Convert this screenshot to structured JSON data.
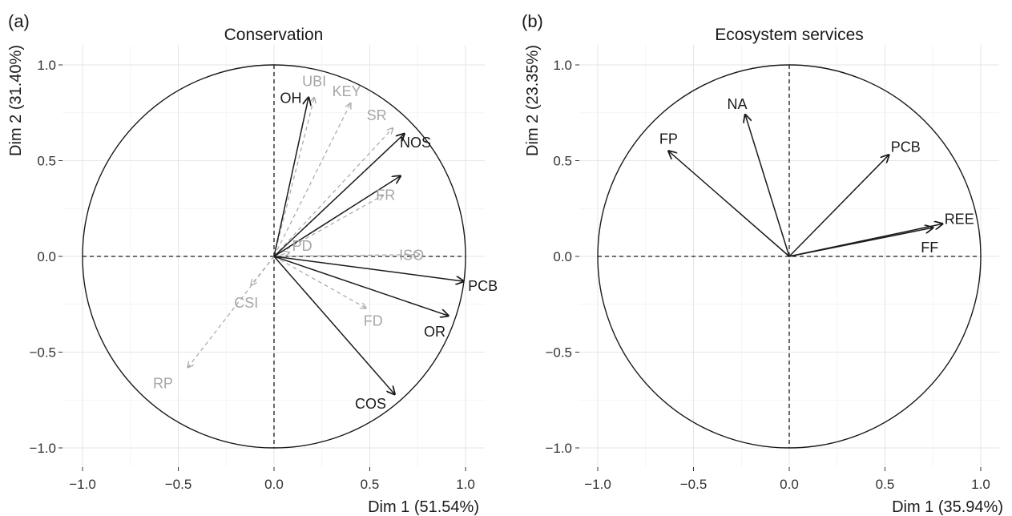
{
  "chart_data": [
    {
      "type": "scatter",
      "panel_label": "(a)",
      "title": "Conservation",
      "xlabel": "Dim 1 (51.54%)",
      "ylabel": "Dim 2 (31.40%)",
      "xlim": [
        -1.1,
        1.1
      ],
      "ylim": [
        -1.1,
        1.1
      ],
      "xticks": [
        "−1.0",
        "−0.5",
        "0.0",
        "0.5",
        "1.0"
      ],
      "yticks": [
        "−1.0",
        "−0.5",
        "0.0",
        "0.5",
        "1.0"
      ],
      "grid": true,
      "unit_circle": true,
      "vectors": [
        {
          "label": "OH",
          "x": 0.18,
          "y": 0.83,
          "style": "solid",
          "color": "#1a1a1a"
        },
        {
          "label": "NOS",
          "x": 0.68,
          "y": 0.64,
          "style": "solid",
          "color": "#1a1a1a"
        },
        {
          "label": "",
          "x": 0.66,
          "y": 0.42,
          "style": "solid",
          "color": "#1a1a1a"
        },
        {
          "label": "PCB",
          "x": 0.99,
          "y": -0.13,
          "style": "solid",
          "color": "#1a1a1a"
        },
        {
          "label": "OR",
          "x": 0.91,
          "y": -0.31,
          "style": "solid",
          "color": "#1a1a1a"
        },
        {
          "label": "COS",
          "x": 0.63,
          "y": -0.72,
          "style": "solid",
          "color": "#1a1a1a"
        },
        {
          "label": "UBI",
          "x": 0.21,
          "y": 0.83,
          "style": "dashed",
          "color": "#a6a6a6"
        },
        {
          "label": "KEY",
          "x": 0.4,
          "y": 0.8,
          "style": "dashed",
          "color": "#a6a6a6"
        },
        {
          "label": "SR",
          "x": 0.62,
          "y": 0.67,
          "style": "dashed",
          "color": "#a6a6a6"
        },
        {
          "label": "FR",
          "x": 0.57,
          "y": 0.32,
          "style": "dashed",
          "color": "#a6a6a6"
        },
        {
          "label": "PD",
          "x": 0.08,
          "y": 0.02,
          "style": "dashed",
          "color": "#a6a6a6"
        },
        {
          "label": "ISO",
          "x": 0.76,
          "y": 0.01,
          "style": "dashed",
          "color": "#a6a6a6"
        },
        {
          "label": "FD",
          "x": 0.48,
          "y": -0.27,
          "style": "dashed",
          "color": "#a6a6a6"
        },
        {
          "label": "CSI",
          "x": -0.12,
          "y": -0.15,
          "style": "dashed",
          "color": "#a6a6a6"
        },
        {
          "label": "RP",
          "x": -0.45,
          "y": -0.58,
          "style": "dashed",
          "color": "#a6a6a6"
        }
      ]
    },
    {
      "type": "scatter",
      "panel_label": "(b)",
      "title": "Ecosystem services",
      "xlabel": "Dim 1 (35.94%)",
      "ylabel": "Dim 2 (23.35%)",
      "xlim": [
        -1.1,
        1.1
      ],
      "ylim": [
        -1.1,
        1.1
      ],
      "xticks": [
        "−1.0",
        "−0.5",
        "0.0",
        "0.5",
        "1.0"
      ],
      "yticks": [
        "−1.0",
        "−0.5",
        "0.0",
        "0.5",
        "1.0"
      ],
      "grid": true,
      "unit_circle": true,
      "vectors": [
        {
          "label": "NA",
          "x": -0.23,
          "y": 0.74,
          "style": "solid",
          "color": "#1a1a1a"
        },
        {
          "label": "FP",
          "x": -0.63,
          "y": 0.55,
          "style": "solid",
          "color": "#1a1a1a"
        },
        {
          "label": "PCB",
          "x": 0.52,
          "y": 0.53,
          "style": "solid",
          "color": "#1a1a1a"
        },
        {
          "label": "REE",
          "x": 0.8,
          "y": 0.17,
          "style": "solid",
          "color": "#1a1a1a"
        },
        {
          "label": "FF",
          "x": 0.75,
          "y": 0.15,
          "style": "solid",
          "color": "#1a1a1a"
        }
      ]
    }
  ]
}
